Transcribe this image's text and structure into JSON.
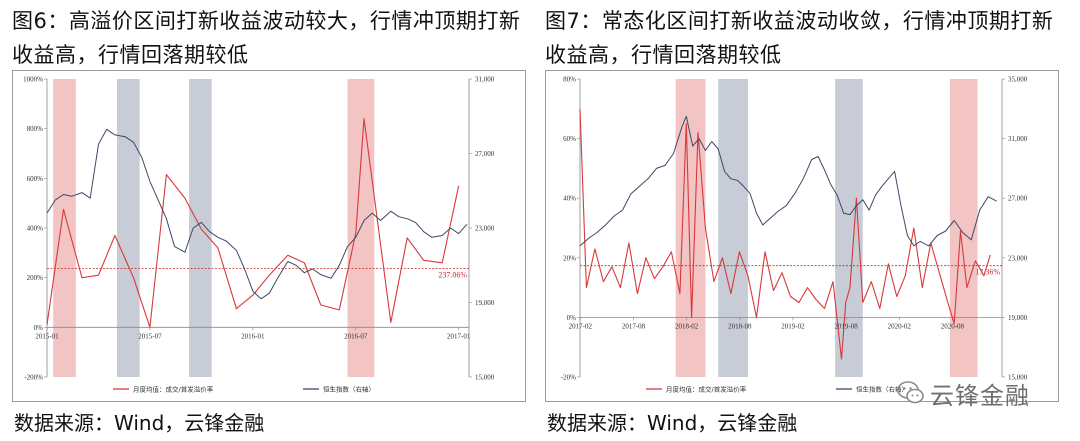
{
  "left": {
    "title_line1": "图6：高溢价区间打新收益波动较大，行情冲顶期打新",
    "title_line2": "收益高，行情回落期较低",
    "source": "数据来源：Wind，云锋金融"
  },
  "right": {
    "title_line1": "图7：常态化区间打新收益波动收敛，行情冲顶期打新",
    "title_line2": "收益高，行情回落期较低",
    "source": "数据来源：Wind，云锋金融"
  },
  "watermark": {
    "text": "云锋金融",
    "icon": "wechat-icon"
  },
  "colors": {
    "red_line": "#d9383a",
    "blue_line": "#3d4a66",
    "red_band": "#f2c4c4",
    "grey_band": "#c7ccd6",
    "dashed": "#c62828"
  },
  "chart_data": [
    {
      "type": "line",
      "x_ticks": [
        "2015-01",
        "2015-07",
        "2016-01",
        "2016-07",
        "2017-01"
      ],
      "y_left_ticks": [
        "-200%",
        "0%",
        "200%",
        "400%",
        "600%",
        "800%",
        "1000%"
      ],
      "y_right_ticks": [
        "15,000",
        "19,000",
        "23,000",
        "27,000",
        "31,000"
      ],
      "y_left_range": [
        -200,
        1000
      ],
      "y_right_range": [
        15000,
        31000
      ],
      "x_range": [
        2015.0,
        2017.05
      ],
      "bands": [
        {
          "kind": "red",
          "start": 2015.03,
          "end": 2015.14
        },
        {
          "kind": "grey",
          "start": 2015.34,
          "end": 2015.45
        },
        {
          "kind": "grey",
          "start": 2015.69,
          "end": 2015.8
        },
        {
          "kind": "red",
          "start": 2016.46,
          "end": 2016.59
        }
      ],
      "reference_line": {
        "value": 237.06,
        "label": "237.06%"
      },
      "series": [
        {
          "name": "月度均值：成交/首发溢价率",
          "axis": "left",
          "x": [
            2015.0,
            2015.08,
            2015.17,
            2015.25,
            2015.33,
            2015.42,
            2015.5,
            2015.58,
            2015.67,
            2015.75,
            2015.83,
            2015.92,
            2016.0,
            2016.08,
            2016.17,
            2016.25,
            2016.33,
            2016.42,
            2016.5,
            2016.54,
            2016.58,
            2016.67,
            2016.75,
            2016.83,
            2016.92,
            2017.0
          ],
          "values": [
            10,
            475,
            200,
            210,
            370,
            200,
            0,
            615,
            520,
            395,
            320,
            75,
            130,
            210,
            290,
            260,
            90,
            70,
            380,
            840,
            590,
            20,
            360,
            270,
            260,
            570
          ]
        },
        {
          "name": "恒生指数（右轴）",
          "axis": "right",
          "x": [
            2015.0,
            2015.04,
            2015.08,
            2015.12,
            2015.17,
            2015.21,
            2015.25,
            2015.29,
            2015.33,
            2015.38,
            2015.42,
            2015.46,
            2015.5,
            2015.54,
            2015.58,
            2015.62,
            2015.67,
            2015.71,
            2015.75,
            2015.79,
            2015.83,
            2015.87,
            2015.92,
            2015.96,
            2016.0,
            2016.04,
            2016.08,
            2016.12,
            2016.17,
            2016.21,
            2016.25,
            2016.29,
            2016.33,
            2016.38,
            2016.42,
            2016.46,
            2016.5,
            2016.54,
            2016.58,
            2016.62,
            2016.67,
            2016.71,
            2016.75,
            2016.79,
            2016.83,
            2016.87,
            2016.92,
            2016.96,
            2017.0,
            2017.04
          ],
          "values": [
            23800,
            24500,
            24800,
            24700,
            24900,
            24600,
            27500,
            28300,
            28000,
            27900,
            27600,
            26800,
            25500,
            24500,
            23500,
            22000,
            21700,
            23000,
            23300,
            22800,
            22500,
            22300,
            21800,
            20800,
            19600,
            19200,
            19500,
            20300,
            21200,
            21000,
            20600,
            20800,
            20500,
            20300,
            21000,
            22000,
            22500,
            23400,
            23800,
            23400,
            23900,
            23600,
            23500,
            23300,
            22800,
            22500,
            22600,
            23000,
            22700,
            23200
          ]
        }
      ],
      "legend": [
        {
          "label": "月度均值：成交/首发溢价率",
          "color": "#d9383a"
        },
        {
          "label": "恒生指数（右轴）",
          "color": "#3d4a66"
        }
      ]
    },
    {
      "type": "line",
      "x_ticks": [
        "2017-02",
        "2017-08",
        "2018-02",
        "2018-08",
        "2019-02",
        "2019-08",
        "2020-02",
        "2020-08"
      ],
      "y_left_ticks": [
        "-20%",
        "0%",
        "20%",
        "40%",
        "60%",
        "80%"
      ],
      "y_right_ticks": [
        "15,000",
        "19,000",
        "23,000",
        "27,000",
        "31,000",
        "35,000"
      ],
      "y_left_range": [
        -20,
        80
      ],
      "y_right_range": [
        15000,
        35000
      ],
      "x_range": [
        2017.08,
        2021.05
      ],
      "bands": [
        {
          "kind": "red",
          "start": 2017.98,
          "end": 2018.26
        },
        {
          "kind": "grey",
          "start": 2018.38,
          "end": 2018.66
        },
        {
          "kind": "grey",
          "start": 2019.48,
          "end": 2019.74
        },
        {
          "kind": "red",
          "start": 2020.56,
          "end": 2020.82
        }
      ],
      "reference_line": {
        "value": 17.36,
        "label": "17.36%"
      },
      "series": [
        {
          "name": "月度均值：成交/首发溢价率",
          "axis": "left",
          "x": [
            2017.08,
            2017.14,
            2017.22,
            2017.3,
            2017.38,
            2017.46,
            2017.54,
            2017.62,
            2017.7,
            2017.78,
            2017.86,
            2017.94,
            2018.02,
            2018.08,
            2018.13,
            2018.19,
            2018.26,
            2018.34,
            2018.42,
            2018.5,
            2018.58,
            2018.66,
            2018.74,
            2018.82,
            2018.9,
            2018.98,
            2019.06,
            2019.14,
            2019.22,
            2019.3,
            2019.38,
            2019.46,
            2019.54,
            2019.58,
            2019.62,
            2019.68,
            2019.74,
            2019.82,
            2019.9,
            2019.98,
            2020.06,
            2020.14,
            2020.22,
            2020.3,
            2020.38,
            2020.46,
            2020.54,
            2020.6,
            2020.66,
            2020.72,
            2020.8,
            2020.88,
            2020.94
          ],
          "values": [
            70,
            10,
            23,
            12,
            17,
            10,
            25,
            8,
            20,
            13,
            17,
            22,
            8,
            65,
            0,
            62,
            30,
            12,
            20,
            8,
            22,
            14,
            0,
            22,
            9,
            15,
            7,
            5,
            10,
            6,
            3,
            12,
            -14,
            5,
            10,
            40,
            5,
            12,
            3,
            18,
            7,
            14,
            30,
            10,
            25,
            15,
            5,
            -2,
            29,
            10,
            19,
            14,
            21
          ]
        },
        {
          "name": "恒生指数（右轴）",
          "axis": "right",
          "x": [
            2017.08,
            2017.16,
            2017.24,
            2017.32,
            2017.4,
            2017.48,
            2017.56,
            2017.64,
            2017.72,
            2017.8,
            2017.88,
            2017.96,
            2018.04,
            2018.08,
            2018.14,
            2018.2,
            2018.26,
            2018.32,
            2018.38,
            2018.44,
            2018.5,
            2018.56,
            2018.62,
            2018.68,
            2018.74,
            2018.8,
            2018.86,
            2018.94,
            2019.02,
            2019.1,
            2019.18,
            2019.26,
            2019.32,
            2019.38,
            2019.44,
            2019.5,
            2019.56,
            2019.62,
            2019.68,
            2019.74,
            2019.8,
            2019.86,
            2019.92,
            2019.98,
            2020.04,
            2020.1,
            2020.16,
            2020.22,
            2020.28,
            2020.36,
            2020.44,
            2020.52,
            2020.6,
            2020.68,
            2020.76,
            2020.84,
            2020.92,
            2021.0
          ],
          "values": [
            23800,
            24300,
            24700,
            25200,
            25800,
            26200,
            27300,
            27800,
            28300,
            29000,
            29200,
            30000,
            31800,
            32500,
            30500,
            31000,
            30200,
            30800,
            30300,
            28800,
            28300,
            28200,
            27800,
            27300,
            26000,
            25200,
            25600,
            26100,
            26500,
            27300,
            28300,
            29600,
            29800,
            28900,
            27900,
            27200,
            26000,
            25900,
            26500,
            26900,
            26200,
            27200,
            27800,
            28300,
            28800,
            26500,
            24500,
            23800,
            24100,
            23800,
            24500,
            24800,
            25500,
            24700,
            24200,
            26200,
            27100,
            26800
          ]
        }
      ],
      "legend": [
        {
          "label": "月度均值：成交/首发溢价率",
          "color": "#d9383a"
        },
        {
          "label": "恒生指数（右轴）",
          "color": "#3d4a66"
        }
      ]
    }
  ]
}
